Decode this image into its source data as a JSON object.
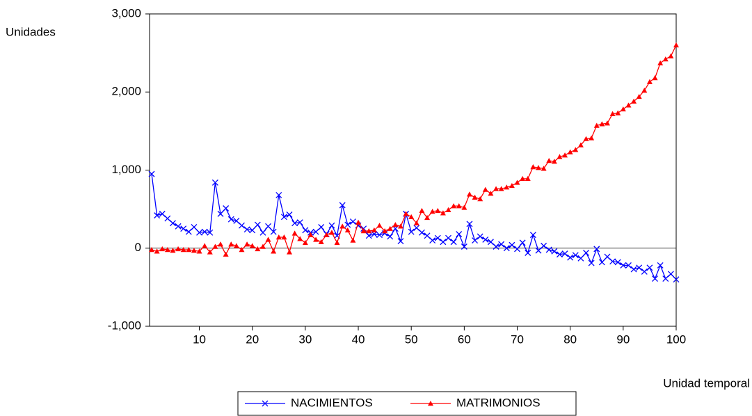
{
  "chart_data": {
    "type": "line",
    "y_label": "Unidades",
    "x_label": "Unidad temporal",
    "x": [
      1,
      2,
      3,
      4,
      5,
      6,
      7,
      8,
      9,
      10,
      11,
      12,
      13,
      14,
      15,
      16,
      17,
      18,
      19,
      20,
      21,
      22,
      23,
      24,
      25,
      26,
      27,
      28,
      29,
      30,
      31,
      32,
      33,
      34,
      35,
      36,
      37,
      38,
      39,
      40,
      41,
      42,
      43,
      44,
      45,
      46,
      47,
      48,
      49,
      50,
      51,
      52,
      53,
      54,
      55,
      56,
      57,
      58,
      59,
      60,
      61,
      62,
      63,
      64,
      65,
      66,
      67,
      68,
      69,
      70,
      71,
      72,
      73,
      74,
      75,
      76,
      77,
      78,
      79,
      80,
      81,
      82,
      83,
      84,
      85,
      86,
      87,
      88,
      89,
      90,
      91,
      92,
      93,
      94,
      95,
      96,
      97,
      98,
      99,
      100
    ],
    "series": [
      {
        "name": "NACIMIENTOS",
        "color": "#0000ff",
        "marker": "x",
        "values": [
          950,
          420,
          440,
          380,
          320,
          280,
          250,
          210,
          270,
          200,
          210,
          200,
          840,
          440,
          510,
          370,
          350,
          290,
          240,
          230,
          300,
          200,
          280,
          210,
          680,
          400,
          430,
          320,
          330,
          230,
          200,
          210,
          270,
          180,
          290,
          160,
          550,
          300,
          340,
          290,
          250,
          160,
          180,
          170,
          190,
          150,
          250,
          90,
          440,
          210,
          260,
          200,
          160,
          100,
          130,
          80,
          130,
          80,
          180,
          20,
          310,
          100,
          150,
          110,
          80,
          20,
          50,
          0,
          40,
          -10,
          70,
          -60,
          170,
          -30,
          30,
          -20,
          -40,
          -80,
          -70,
          -120,
          -90,
          -130,
          -60,
          -190,
          -10,
          -180,
          -110,
          -170,
          -180,
          -220,
          -220,
          -270,
          -250,
          -300,
          -250,
          -390,
          -220,
          -390,
          -330,
          -400
        ]
      },
      {
        "name": "MATRIMONIOS",
        "color": "#ff0000",
        "marker": "triangle",
        "values": [
          -20,
          -40,
          -10,
          -20,
          -30,
          -10,
          -20,
          -20,
          -30,
          -40,
          30,
          -50,
          20,
          50,
          -80,
          50,
          30,
          -20,
          50,
          30,
          -10,
          20,
          110,
          -40,
          140,
          140,
          -50,
          190,
          120,
          70,
          170,
          110,
          80,
          170,
          200,
          70,
          280,
          230,
          100,
          330,
          220,
          220,
          230,
          290,
          220,
          250,
          300,
          280,
          440,
          400,
          320,
          480,
          390,
          470,
          480,
          450,
          490,
          540,
          540,
          520,
          690,
          650,
          630,
          750,
          700,
          760,
          760,
          780,
          800,
          840,
          890,
          890,
          1040,
          1030,
          1020,
          1120,
          1110,
          1170,
          1190,
          1230,
          1260,
          1320,
          1400,
          1410,
          1570,
          1590,
          1600,
          1720,
          1730,
          1780,
          1830,
          1880,
          1940,
          2020,
          2130,
          2180,
          2370,
          2420,
          2460,
          2600
        ]
      }
    ],
    "xlim": [
      1,
      100
    ],
    "xticks": [
      10,
      20,
      30,
      40,
      50,
      60,
      70,
      80,
      90,
      100
    ],
    "ylim": [
      -1000,
      3000
    ],
    "yticks": [
      {
        "value": -1000,
        "label": "-1,000"
      },
      0,
      {
        "value": 1000,
        "label": "1,000"
      },
      {
        "value": 2000,
        "label": "2,000"
      },
      {
        "value": 3000,
        "label": "3,000"
      }
    ],
    "zero_line": true,
    "legend": "bottom"
  }
}
